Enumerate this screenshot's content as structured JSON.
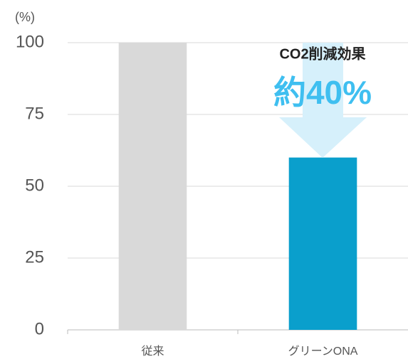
{
  "chart_data": {
    "type": "bar",
    "y_label": "(%)",
    "categories": [
      "従来",
      "グリーンONA"
    ],
    "values": [
      100,
      60
    ],
    "colors": [
      "#d9d9d9",
      "#0a9fcc"
    ],
    "ylim": [
      0,
      100
    ],
    "yticks": [
      0,
      25,
      50,
      75,
      100
    ],
    "grid": true,
    "annotation_title": "CO2削減効果",
    "annotation": "約40%"
  }
}
